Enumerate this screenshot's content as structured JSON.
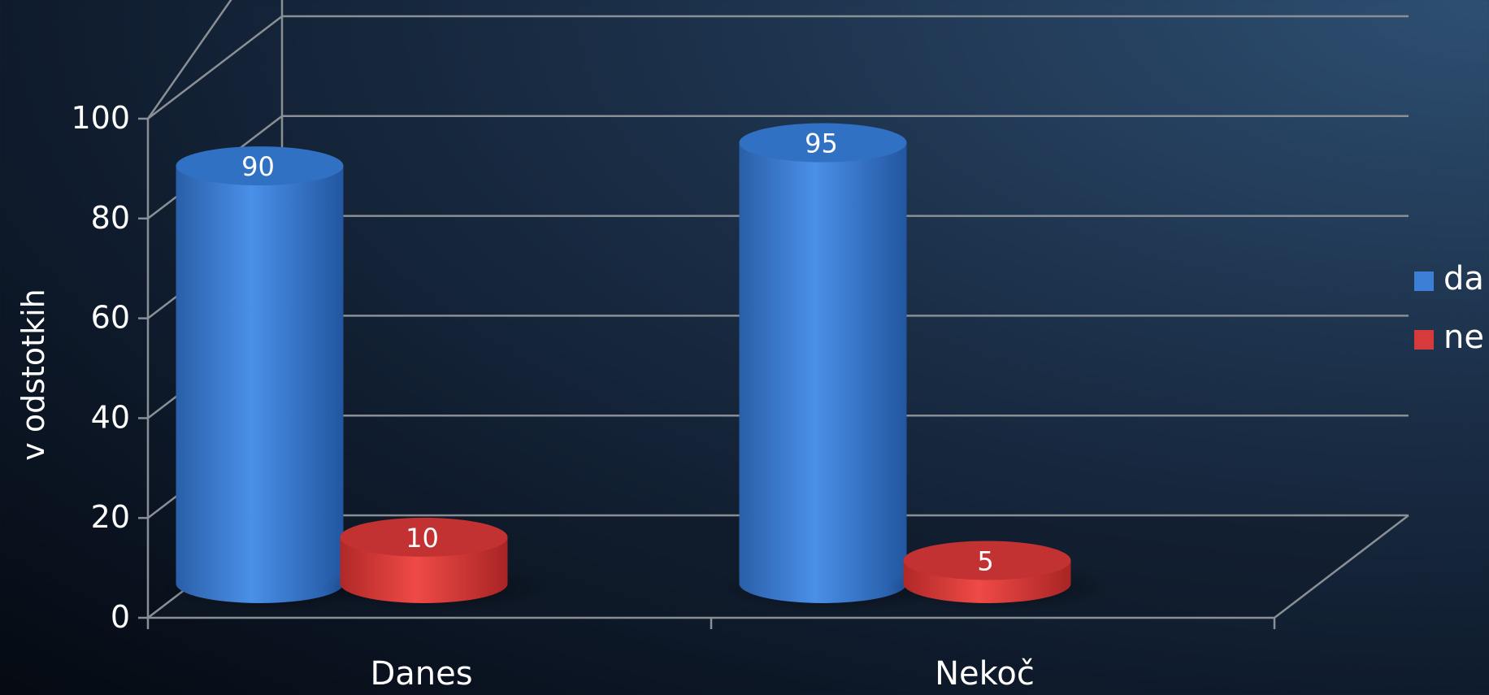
{
  "chart_data": {
    "type": "bar",
    "style": "3d-cylinder",
    "title": "",
    "xlabel": "",
    "ylabel": "v odstotkih",
    "ylim": [
      0,
      100
    ],
    "y_ticks": [
      0,
      20,
      40,
      60,
      80,
      100
    ],
    "categories": [
      "Danes",
      "Nekoč"
    ],
    "series": [
      {
        "name": "da",
        "color": "#3d7fd6",
        "values": [
          90,
          95
        ]
      },
      {
        "name": "ne",
        "color": "#d63a3a",
        "values": [
          10,
          5
        ]
      }
    ],
    "data_labels": true,
    "grid": true,
    "legend_position": "right"
  }
}
